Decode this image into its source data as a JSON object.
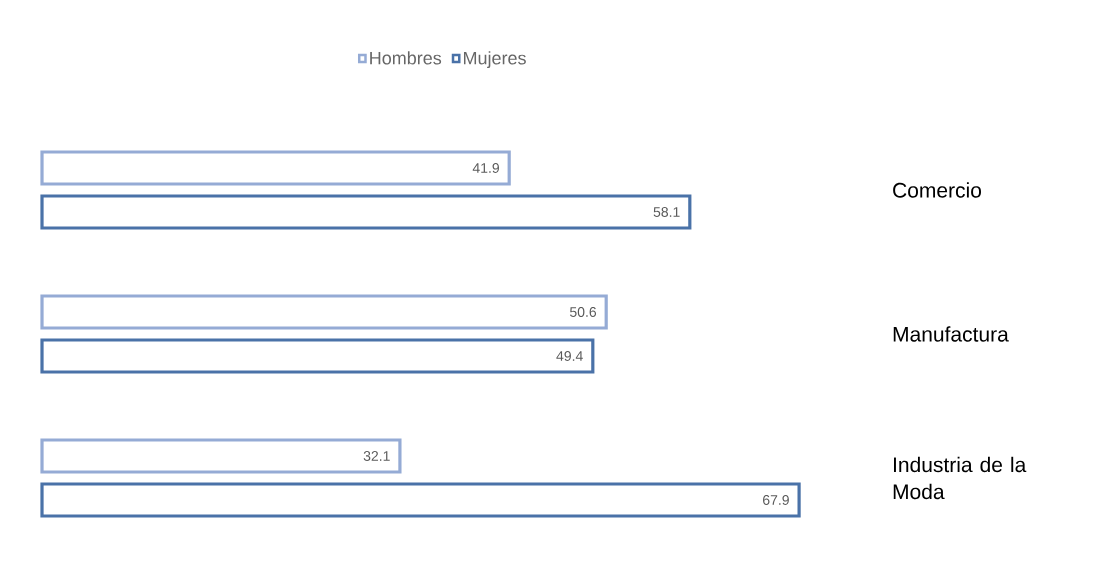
{
  "chart_data": {
    "type": "bar",
    "orientation": "horizontal",
    "categories": [
      "Comercio",
      "Manufactura",
      "Industria de la Moda"
    ],
    "series": [
      {
        "name": "Hombres",
        "color": "#95abd5",
        "values": [
          41.9,
          50.6,
          32.1
        ]
      },
      {
        "name": "Mujeres",
        "color": "#4a72a8",
        "values": [
          58.1,
          49.4,
          67.9
        ]
      }
    ],
    "data_labels": true,
    "legend": "top"
  }
}
